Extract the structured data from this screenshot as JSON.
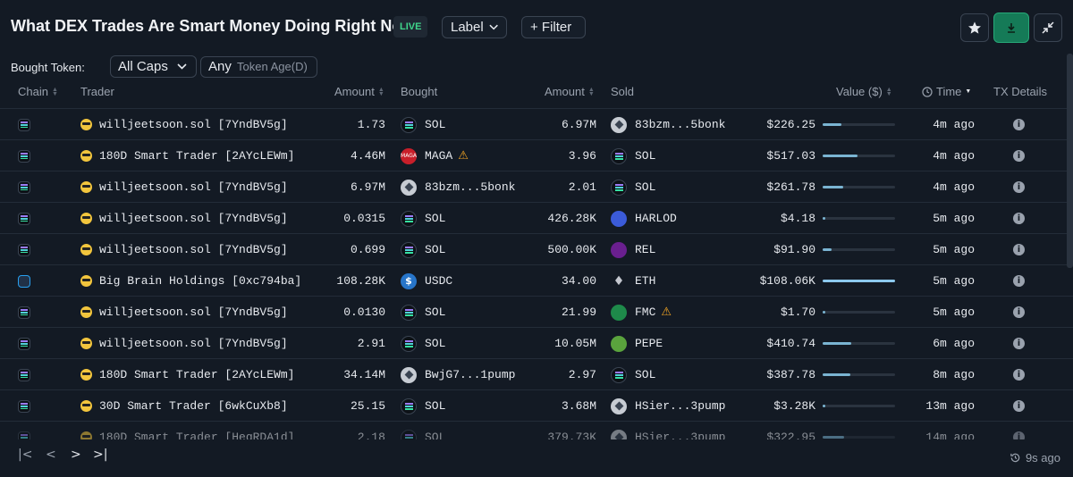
{
  "header": {
    "title": "What DEX Trades Are Smart Money Doing Right Now?",
    "live": "LIVE",
    "label_btn": "Label",
    "filter_btn": "+ Filter"
  },
  "filters": {
    "bought_label": "Bought Token:",
    "caps_value": "All Caps",
    "age_value": "Any",
    "age_placeholder": "Token Age(D)"
  },
  "columns": {
    "chain": "Chain",
    "trader": "Trader",
    "amount1": "Amount",
    "bought": "Bought",
    "amount2": "Amount",
    "sold": "Sold",
    "value": "Value ($)",
    "time": "Time",
    "tx": "TX Details"
  },
  "rows": [
    {
      "trader": "willjeetsoon.sol [7YndBV5g]",
      "amount1": "1.73",
      "bought": "SOL",
      "bought_icon": "sol",
      "amount2": "6.97M",
      "sold": "83bzm...5bonk",
      "sold_icon": "gen",
      "value": "$226.25",
      "bar": 0.26,
      "time": "4m ago"
    },
    {
      "trader": "180D Smart Trader [2AYcLEWm]",
      "amount1": "4.46M",
      "bought": "MAGA",
      "bought_icon": "maga",
      "bought_warn": true,
      "amount2": "3.96",
      "sold": "SOL",
      "sold_icon": "sol",
      "value": "$517.03",
      "bar": 0.48,
      "time": "4m ago"
    },
    {
      "trader": "willjeetsoon.sol [7YndBV5g]",
      "amount1": "6.97M",
      "bought": "83bzm...5bonk",
      "bought_icon": "gen",
      "amount2": "2.01",
      "sold": "SOL",
      "sold_icon": "sol",
      "value": "$261.78",
      "bar": 0.28,
      "time": "4m ago"
    },
    {
      "trader": "willjeetsoon.sol [7YndBV5g]",
      "amount1": "0.0315",
      "bought": "SOL",
      "bought_icon": "sol",
      "amount2": "426.28K",
      "sold": "HARLOD",
      "sold_icon": "harlod",
      "value": "$4.18",
      "bar": 0.02,
      "time": "5m ago"
    },
    {
      "trader": "willjeetsoon.sol [7YndBV5g]",
      "amount1": "0.699",
      "bought": "SOL",
      "bought_icon": "sol",
      "amount2": "500.00K",
      "sold": "REL",
      "sold_icon": "rel",
      "value": "$91.90",
      "bar": 0.12,
      "time": "5m ago"
    },
    {
      "trader": "Big Brain Holdings [0xc794ba]",
      "chain_icon": "arb",
      "amount1": "108.28K",
      "bought": "USDC",
      "bought_icon": "usdc",
      "amount2": "34.00",
      "sold": "ETH",
      "sold_icon": "eth",
      "value": "$108.06K",
      "bar": 1.0,
      "time": "5m ago"
    },
    {
      "trader": "willjeetsoon.sol [7YndBV5g]",
      "amount1": "0.0130",
      "bought": "SOL",
      "bought_icon": "sol",
      "amount2": "21.99",
      "sold": "FMC",
      "sold_icon": "fmc",
      "sold_warn": true,
      "value": "$1.70",
      "bar": 0.01,
      "time": "5m ago"
    },
    {
      "trader": "willjeetsoon.sol [7YndBV5g]",
      "amount1": "2.91",
      "bought": "SOL",
      "bought_icon": "sol",
      "amount2": "10.05M",
      "sold": "PEPE",
      "sold_icon": "pepe",
      "value": "$410.74",
      "bar": 0.4,
      "time": "6m ago"
    },
    {
      "trader": "180D Smart Trader [2AYcLEWm]",
      "amount1": "34.14M",
      "bought": "BwjG7...1pump",
      "bought_icon": "gen",
      "amount2": "2.97",
      "sold": "SOL",
      "sold_icon": "sol",
      "value": "$387.78",
      "bar": 0.38,
      "time": "8m ago"
    },
    {
      "trader": "30D Smart Trader [6wkCuXb8]",
      "amount1": "25.15",
      "bought": "SOL",
      "bought_icon": "sol",
      "amount2": "3.68M",
      "sold": "HSier...3pump",
      "sold_icon": "gen",
      "value": "$3.28K",
      "bar": 0.03,
      "time": "13m ago"
    },
    {
      "trader": "180D Smart Trader [HegRDA1d]",
      "amount1": "2.18",
      "bought": "SOL",
      "bought_icon": "sol",
      "amount2": "379.73K",
      "sold": "HSier...3pump",
      "sold_icon": "gen",
      "value": "$322.95",
      "bar": 0.3,
      "time": "14m ago"
    }
  ],
  "footer": {
    "refresh": "9s ago"
  }
}
